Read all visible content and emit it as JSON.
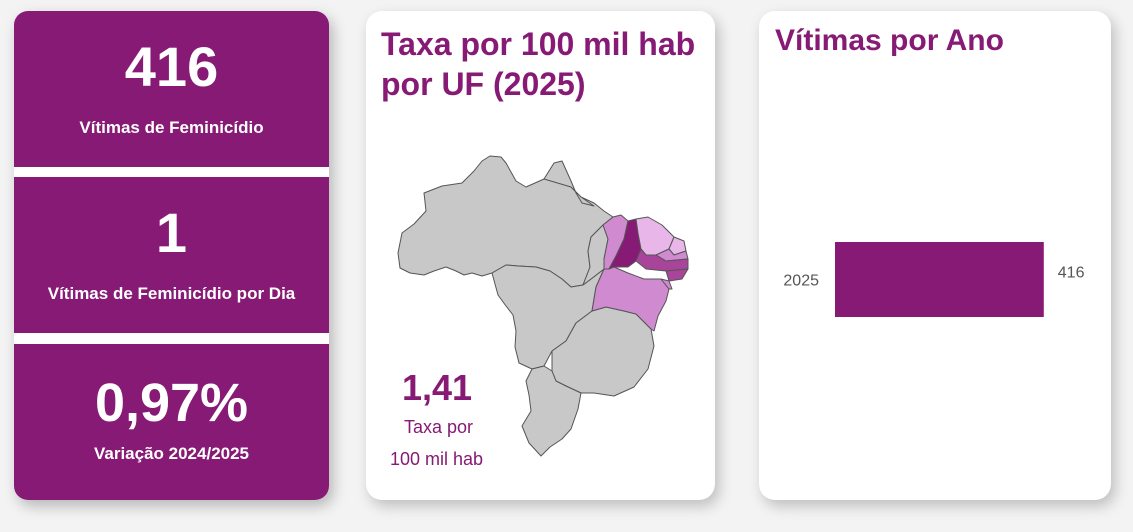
{
  "colors": {
    "primary": "#861a74",
    "map_gray": "#c8c8c8",
    "map_light": "#e8b6e8",
    "map_mid": "#d08ad0",
    "map_dark": "#a8459a",
    "map_darkest": "#861a74"
  },
  "kpis": [
    {
      "value": "416",
      "label": "Vítimas de Feminicídio"
    },
    {
      "value": "1",
      "label": "Vítimas de Feminicídio por Dia"
    },
    {
      "value": "0,97%",
      "label": "Variação 2024/2025"
    }
  ],
  "map_panel": {
    "title": "Taxa por 100 mil hab por UF (2025)",
    "rate_value": "1,41",
    "rate_label_line1": "Taxa por",
    "rate_label_line2": "100 mil hab"
  },
  "chart_data": {
    "type": "bar",
    "orientation": "horizontal",
    "title": "Vítimas por Ano",
    "categories": [
      "2025"
    ],
    "values": [
      416
    ],
    "data_labels": [
      "416"
    ],
    "xlim": [
      0,
      530
    ]
  }
}
